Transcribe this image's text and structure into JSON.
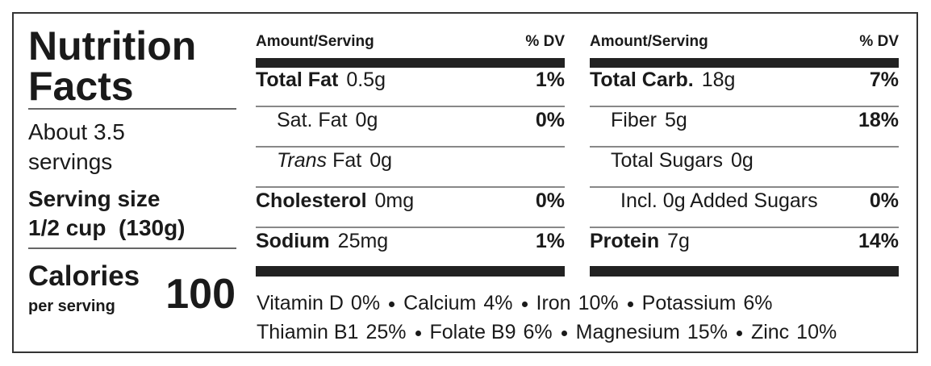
{
  "title": "Nutrition Facts",
  "servings": "About 3.5 servings",
  "serving_size": {
    "label": "Serving size",
    "value": "1/2 cup  (130g)"
  },
  "calories": {
    "label": "Calories",
    "sub": "per serving",
    "value": 100
  },
  "columns": [
    {
      "header": {
        "amount": "Amount/Serving",
        "dv": "% DV"
      },
      "rows": [
        {
          "name": "Total Fat",
          "amount": "0.5g",
          "dv": "1%"
        },
        {
          "name": "Sat. Fat",
          "amount": "0g",
          "dv": "0%"
        },
        {
          "name_italic": "Trans",
          "name": "Fat",
          "amount": "0g"
        },
        {
          "name": "Cholesterol",
          "amount": "0mg",
          "dv": "0%"
        },
        {
          "name": "Sodium",
          "amount": "25mg",
          "dv": "1%"
        }
      ]
    },
    {
      "header": {
        "amount": "Amount/Serving",
        "dv": "% DV"
      },
      "rows": [
        {
          "name": "Total Carb.",
          "amount": "18g",
          "dv": "7%"
        },
        {
          "name": "Fiber",
          "amount": "5g",
          "dv": "18%"
        },
        {
          "name": "Total Sugars",
          "amount": "0g"
        },
        {
          "name": "Incl. 0g Added Sugars",
          "dv": "0%"
        },
        {
          "name": "Protein",
          "amount": "7g",
          "dv": "14%"
        }
      ]
    }
  ],
  "vitamins": [
    [
      {
        "name": "Vitamin D",
        "dv": "0%"
      },
      {
        "name": "Calcium",
        "dv": "4%"
      },
      {
        "name": "Iron",
        "dv": "10%"
      },
      {
        "name": "Potassium",
        "dv": "6%"
      }
    ],
    [
      {
        "name": "Thiamin B1",
        "dv": "25%"
      },
      {
        "name": "Folate B9",
        "dv": "6%"
      },
      {
        "name": "Magnesium",
        "dv": "15%"
      },
      {
        "name": "Zinc",
        "dv": "10%"
      }
    ]
  ]
}
